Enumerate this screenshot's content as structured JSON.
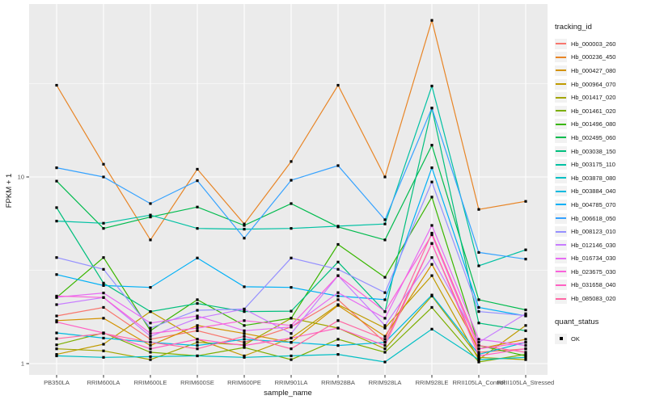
{
  "chart_data": {
    "type": "line",
    "title": "",
    "xlabel": "sample_name",
    "ylabel": "FPKM + 1",
    "y_scale": "log10",
    "grid": "on",
    "panel_bg": "#EBEBEB",
    "grid_color": "#FFFFFF",
    "point_shape": "filled-square",
    "point_color": "#000000",
    "y_ticks": [
      {
        "value": 1,
        "label": "1"
      },
      {
        "value": 10,
        "label": "10"
      }
    ],
    "y_minor_ticks": [
      3.1623,
      31.623
    ],
    "ylim": [
      0.93,
      85
    ],
    "categories": [
      "PB350LA",
      "RRIM600LA",
      "RRIM600LE",
      "RRIM600SE",
      "RRIM600PE",
      "RRIM901LA",
      "RRIM928BA",
      "RRIM928LA",
      "RRIM928LE",
      "RRII105LA_Control",
      "RRII105LA_Stressed"
    ],
    "legend": {
      "color_title": "tracking_id",
      "shape_title": "quant_status",
      "shape_items": [
        {
          "label": "OK"
        }
      ]
    },
    "series": [
      {
        "name": "Hb_000003_260",
        "color": "#F8766D",
        "values": [
          1.8,
          2.0,
          1.35,
          1.5,
          1.3,
          1.57,
          2.2,
          1.3,
          4.4,
          1.15,
          1.2
        ]
      },
      {
        "name": "Hb_000236_450",
        "color": "#E88526",
        "values": [
          31,
          11.7,
          4.6,
          11.0,
          5.6,
          12.1,
          31,
          10.0,
          69,
          6.7,
          7.4
        ]
      },
      {
        "name": "Hb_000427_080",
        "color": "#D39200",
        "values": [
          1.7,
          1.75,
          1.25,
          1.6,
          1.45,
          1.3,
          2.05,
          1.4,
          3.4,
          1.2,
          1.35
        ]
      },
      {
        "name": "Hb_000964_070",
        "color": "#C09B00",
        "values": [
          1.12,
          1.27,
          1.9,
          1.35,
          1.1,
          1.37,
          2.07,
          1.55,
          2.96,
          1.05,
          1.6
        ]
      },
      {
        "name": "Hb_001417_020",
        "color": "#A3A500",
        "values": [
          1.2,
          1.17,
          1.05,
          1.3,
          1.26,
          1.75,
          1.55,
          1.2,
          2.3,
          1.08,
          1.05
        ]
      },
      {
        "name": "Hb_001461_020",
        "color": "#7CAE00",
        "values": [
          1.26,
          1.46,
          1.15,
          1.1,
          1.22,
          1.05,
          1.35,
          1.15,
          2.0,
          1.02,
          1.12
        ]
      },
      {
        "name": "Hb_001496_080",
        "color": "#39B600",
        "values": [
          2.26,
          3.7,
          1.5,
          2.2,
          1.6,
          1.75,
          4.35,
          2.9,
          7.8,
          1.25,
          1.1
        ]
      },
      {
        "name": "Hb_002495_060",
        "color": "#00BB4E",
        "values": [
          9.5,
          5.3,
          6.1,
          6.9,
          5.5,
          7.2,
          5.4,
          4.6,
          14.8,
          2.2,
          1.94
        ]
      },
      {
        "name": "Hb_003038_150",
        "color": "#00BF7D",
        "values": [
          6.85,
          2.7,
          1.9,
          2.1,
          1.9,
          1.91,
          3.5,
          1.9,
          23.4,
          1.65,
          1.5
        ]
      },
      {
        "name": "Hb_003175_110",
        "color": "#00C1A3",
        "values": [
          5.8,
          5.65,
          6.25,
          5.3,
          5.25,
          5.3,
          5.45,
          5.6,
          30.7,
          3.34,
          4.07
        ]
      },
      {
        "name": "Hb_003878_080",
        "color": "#00BFC4",
        "values": [
          1.1,
          1.08,
          1.09,
          1.1,
          1.08,
          1.1,
          1.12,
          1.02,
          1.53,
          1.05,
          1.08
        ]
      },
      {
        "name": "Hb_003884_040",
        "color": "#00BAE0",
        "values": [
          1.46,
          1.37,
          1.3,
          1.25,
          1.35,
          1.3,
          1.25,
          1.3,
          2.33,
          1.12,
          1.3
        ]
      },
      {
        "name": "Hb_004785_070",
        "color": "#00B0F6",
        "values": [
          3.0,
          2.62,
          2.56,
          3.68,
          2.58,
          2.56,
          2.3,
          2.2,
          11.2,
          2.0,
          1.8
        ]
      },
      {
        "name": "Hb_006618_050",
        "color": "#35A2FF",
        "values": [
          11.2,
          10.0,
          7.2,
          9.55,
          4.7,
          9.6,
          11.5,
          5.9,
          23.4,
          3.94,
          3.63
        ]
      },
      {
        "name": "Hb_008123_010",
        "color": "#9590FF",
        "values": [
          3.7,
          3.2,
          1.55,
          1.93,
          1.96,
          3.68,
          3.2,
          2.4,
          9.4,
          1.9,
          1.81
        ]
      },
      {
        "name": "Hb_012146_030",
        "color": "#C77CFF",
        "values": [
          2.07,
          2.26,
          1.4,
          1.75,
          1.96,
          1.45,
          2.96,
          1.6,
          3.7,
          1.3,
          1.85
        ]
      },
      {
        "name": "Hb_016734_030",
        "color": "#E76BF3",
        "values": [
          2.27,
          2.39,
          1.65,
          1.8,
          1.5,
          1.57,
          2.4,
          1.75,
          5.5,
          1.35,
          1.25
        ]
      },
      {
        "name": "Hb_023675_030",
        "color": "#FA62DB",
        "values": [
          2.3,
          2.26,
          1.45,
          1.55,
          1.7,
          1.6,
          2.96,
          1.9,
          4.9,
          1.2,
          1.3
        ]
      },
      {
        "name": "Hb_031658_040",
        "color": "#FF61C3",
        "values": [
          1.67,
          1.46,
          1.2,
          1.35,
          1.25,
          1.37,
          1.55,
          1.25,
          4.4,
          1.1,
          1.2
        ]
      },
      {
        "name": "Hb_085083_020",
        "color": "#FF67A4",
        "values": [
          1.36,
          1.45,
          1.3,
          1.2,
          1.4,
          1.2,
          1.7,
          1.35,
          5.0,
          1.25,
          1.15
        ]
      }
    ]
  }
}
